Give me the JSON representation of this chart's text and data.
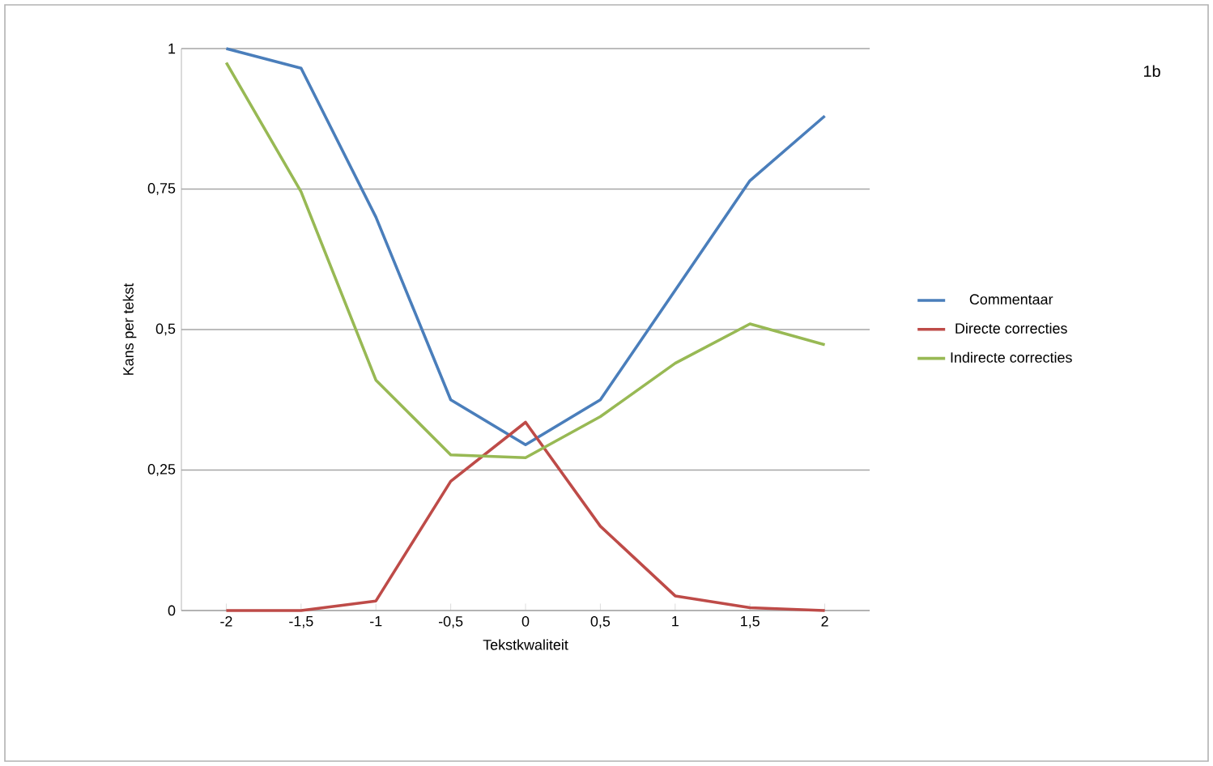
{
  "chart_data": {
    "type": "line",
    "xlabel": "Tekstkwaliteit",
    "ylabel": "Kans per tekst",
    "categories": [
      "-2",
      "-1,5",
      "-1",
      "-0,5",
      "0",
      "0,5",
      "1",
      "1,5",
      "2"
    ],
    "series": [
      {
        "name": "Commentaar",
        "color": "#4a7ebb",
        "values": [
          1.0,
          0.965,
          0.7,
          0.375,
          0.295,
          0.375,
          0.57,
          0.765,
          0.88
        ]
      },
      {
        "name": "Directe correcties",
        "color": "#be4b48",
        "values": [
          0.0,
          0.0,
          0.017,
          0.23,
          0.335,
          0.15,
          0.026,
          0.005,
          0.0
        ]
      },
      {
        "name": "Indirecte correcties",
        "color": "#98b954",
        "values": [
          0.975,
          0.745,
          0.41,
          0.277,
          0.272,
          0.345,
          0.44,
          0.51,
          0.473
        ]
      }
    ],
    "ylim": [
      0,
      1
    ],
    "yticks": [
      0,
      {
        "value": 0.25,
        "label": "0,25"
      },
      {
        "value": 0.5,
        "label": "0,5"
      },
      {
        "value": 0.75,
        "label": "0,75"
      },
      1
    ],
    "grid": "y",
    "legend": "right",
    "marker": "none",
    "line_style": "solid",
    "annotations": [
      "1b"
    ]
  }
}
